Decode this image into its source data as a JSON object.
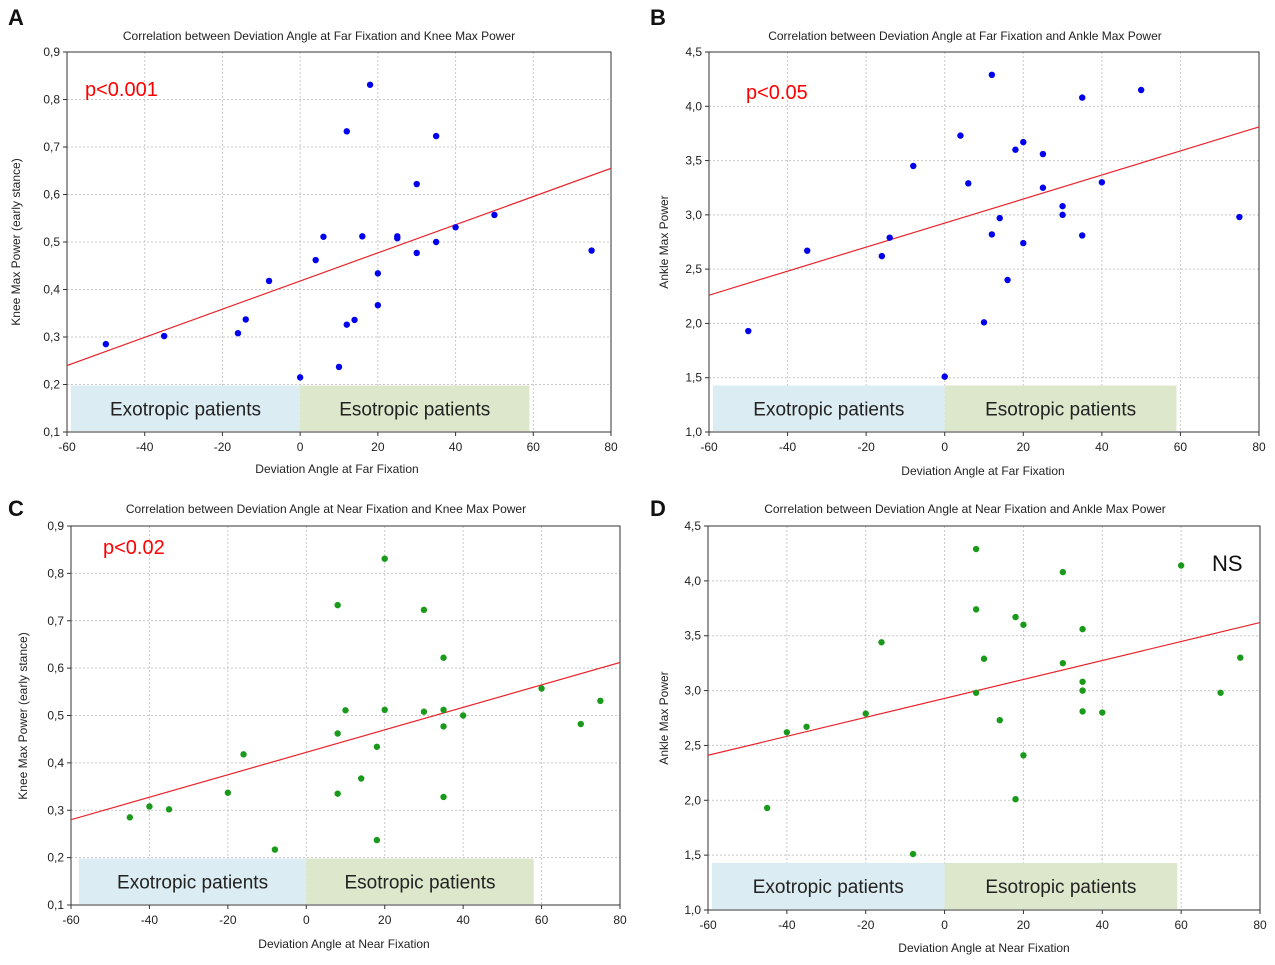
{
  "chart_data": [
    {
      "panel": "A",
      "type": "scatter",
      "title": "Correlation between Deviation Angle at Far Fixation and Knee Max Power",
      "xlabel": "Deviation Angle at Far Fixation",
      "ylabel": "Knee Max Power (early stance)",
      "xlim": [
        -60,
        80
      ],
      "ylim": [
        0.1,
        0.9
      ],
      "xticks": [
        -60,
        -40,
        -20,
        0,
        20,
        40,
        60,
        80
      ],
      "yticks": [
        0.1,
        0.2,
        0.3,
        0.4,
        0.5,
        0.6,
        0.7,
        0.8,
        0.9
      ],
      "xtick_labels": [
        "-60",
        "-40",
        "-20",
        "0",
        "20",
        "40",
        "60",
        "80"
      ],
      "ytick_labels": [
        "0,1",
        "0,2",
        "0,3",
        "0,4",
        "0,5",
        "0,6",
        "0,7",
        "0,8",
        "0,9"
      ],
      "grid": true,
      "point_color": "#0000ee",
      "line_color": "#e8232a",
      "fit_line": {
        "x": [
          -60,
          80
        ],
        "y": [
          0.24,
          0.655
        ]
      },
      "annotation": {
        "text": "p<0.001",
        "color": "#ff0000"
      },
      "regions": [
        {
          "label": "Exotropic patients",
          "x0": -59,
          "x1": 0,
          "color": "#dcecf3"
        },
        {
          "label": "Esotropic patients",
          "x0": 0,
          "x1": 59,
          "color": "#dde7cc"
        }
      ],
      "points": [
        {
          "x": -50,
          "y": 0.285
        },
        {
          "x": -35,
          "y": 0.302
        },
        {
          "x": -16,
          "y": 0.308
        },
        {
          "x": -14,
          "y": 0.337
        },
        {
          "x": -8,
          "y": 0.418
        },
        {
          "x": 0,
          "y": 0.215
        },
        {
          "x": 4,
          "y": 0.462
        },
        {
          "x": 6,
          "y": 0.511
        },
        {
          "x": 10,
          "y": 0.237
        },
        {
          "x": 12,
          "y": 0.326
        },
        {
          "x": 14,
          "y": 0.336
        },
        {
          "x": 12,
          "y": 0.733
        },
        {
          "x": 16,
          "y": 0.512
        },
        {
          "x": 18,
          "y": 0.831
        },
        {
          "x": 20,
          "y": 0.434
        },
        {
          "x": 20,
          "y": 0.367
        },
        {
          "x": 25,
          "y": 0.508
        },
        {
          "x": 25,
          "y": 0.512
        },
        {
          "x": 30,
          "y": 0.622
        },
        {
          "x": 30,
          "y": 0.477
        },
        {
          "x": 35,
          "y": 0.723
        },
        {
          "x": 35,
          "y": 0.5
        },
        {
          "x": 40,
          "y": 0.531
        },
        {
          "x": 50,
          "y": 0.557
        },
        {
          "x": 75,
          "y": 0.482
        }
      ]
    },
    {
      "panel": "B",
      "type": "scatter",
      "title": "Correlation between Deviation Angle at Far Fixation and Ankle Max Power",
      "xlabel": "Deviation Angle at Far Fixation",
      "ylabel": "Ankle Max Power",
      "xlim": [
        -60,
        80
      ],
      "ylim": [
        1.0,
        4.5
      ],
      "xticks": [
        -60,
        -40,
        -20,
        0,
        20,
        40,
        60,
        80
      ],
      "yticks": [
        1.0,
        1.5,
        2.0,
        2.5,
        3.0,
        3.5,
        4.0,
        4.5
      ],
      "xtick_labels": [
        "-60",
        "-40",
        "-20",
        "0",
        "20",
        "40",
        "60",
        "80"
      ],
      "ytick_labels": [
        "1,0",
        "1,5",
        "2,0",
        "2,5",
        "3,0",
        "3,5",
        "4,0",
        "4,5"
      ],
      "grid": true,
      "point_color": "#0000ee",
      "line_color": "#e8232a",
      "fit_line": {
        "x": [
          -60,
          80
        ],
        "y": [
          2.26,
          3.81
        ]
      },
      "annotation": {
        "text": "p<0.05",
        "color": "#ff0000"
      },
      "regions": [
        {
          "label": "Exotropic patients",
          "x0": -59,
          "x1": 0,
          "color": "#dcecf3"
        },
        {
          "label": "Esotropic patients",
          "x0": 0,
          "x1": 59,
          "color": "#dde7cc"
        }
      ],
      "points": [
        {
          "x": -50,
          "y": 1.93
        },
        {
          "x": -35,
          "y": 2.67
        },
        {
          "x": -16,
          "y": 2.62
        },
        {
          "x": -14,
          "y": 2.79
        },
        {
          "x": -8,
          "y": 3.45
        },
        {
          "x": 0,
          "y": 1.51
        },
        {
          "x": 4,
          "y": 3.73
        },
        {
          "x": 6,
          "y": 3.29
        },
        {
          "x": 10,
          "y": 2.01
        },
        {
          "x": 12,
          "y": 4.29
        },
        {
          "x": 12,
          "y": 2.82
        },
        {
          "x": 14,
          "y": 2.97
        },
        {
          "x": 16,
          "y": 2.4
        },
        {
          "x": 18,
          "y": 3.6
        },
        {
          "x": 20,
          "y": 3.67
        },
        {
          "x": 20,
          "y": 2.74
        },
        {
          "x": 25,
          "y": 3.56
        },
        {
          "x": 25,
          "y": 3.25
        },
        {
          "x": 30,
          "y": 3.08
        },
        {
          "x": 30,
          "y": 3.0
        },
        {
          "x": 35,
          "y": 4.08
        },
        {
          "x": 35,
          "y": 2.81
        },
        {
          "x": 40,
          "y": 3.3
        },
        {
          "x": 50,
          "y": 4.15
        },
        {
          "x": 75,
          "y": 2.98
        }
      ]
    },
    {
      "panel": "C",
      "type": "scatter",
      "title": "Correlation between Deviation Angle at Near Fixation and Knee Max Power",
      "xlabel": "Deviation Angle at Near Fixation",
      "ylabel": "Knee Max Power (early stance)",
      "xlim": [
        -60,
        80
      ],
      "ylim": [
        0.1,
        0.9
      ],
      "xticks": [
        -60,
        -40,
        -20,
        0,
        20,
        40,
        60,
        80
      ],
      "yticks": [
        0.1,
        0.2,
        0.3,
        0.4,
        0.5,
        0.6,
        0.7,
        0.8,
        0.9
      ],
      "xtick_labels": [
        "-60",
        "-40",
        "-20",
        "0",
        "20",
        "40",
        "60",
        "80"
      ],
      "ytick_labels": [
        "0,1",
        "0,2",
        "0,3",
        "0,4",
        "0,5",
        "0,6",
        "0,7",
        "0,8",
        "0,9"
      ],
      "grid": true,
      "point_color": "#1a9a1a",
      "line_color": "#e8232a",
      "fit_line": {
        "x": [
          -60,
          80
        ],
        "y": [
          0.28,
          0.612
        ]
      },
      "annotation": {
        "text": "p<0.02",
        "color": "#ff0000"
      },
      "regions": [
        {
          "label": "Exotropic patients",
          "x0": -58,
          "x1": 0,
          "color": "#dcecf3"
        },
        {
          "label": "Esotropic patients",
          "x0": 0,
          "x1": 58,
          "color": "#dde7cc"
        }
      ],
      "points": [
        {
          "x": -45,
          "y": 0.285
        },
        {
          "x": -40,
          "y": 0.308
        },
        {
          "x": -35,
          "y": 0.302
        },
        {
          "x": -20,
          "y": 0.337
        },
        {
          "x": -16,
          "y": 0.418
        },
        {
          "x": -8,
          "y": 0.217
        },
        {
          "x": 8,
          "y": 0.733
        },
        {
          "x": 8,
          "y": 0.462
        },
        {
          "x": 8,
          "y": 0.335
        },
        {
          "x": 10,
          "y": 0.511
        },
        {
          "x": 14,
          "y": 0.367
        },
        {
          "x": 18,
          "y": 0.434
        },
        {
          "x": 18,
          "y": 0.237
        },
        {
          "x": 20,
          "y": 0.831
        },
        {
          "x": 20,
          "y": 0.512
        },
        {
          "x": 30,
          "y": 0.723
        },
        {
          "x": 30,
          "y": 0.508
        },
        {
          "x": 35,
          "y": 0.622
        },
        {
          "x": 35,
          "y": 0.512
        },
        {
          "x": 35,
          "y": 0.477
        },
        {
          "x": 35,
          "y": 0.328
        },
        {
          "x": 40,
          "y": 0.5
        },
        {
          "x": 60,
          "y": 0.557
        },
        {
          "x": 70,
          "y": 0.482
        },
        {
          "x": 75,
          "y": 0.531
        }
      ]
    },
    {
      "panel": "D",
      "type": "scatter",
      "title": "Correlation between Deviation Angle at Near Fixation and Ankle Max Power",
      "xlabel": "Deviation Angle at Near Fixation",
      "ylabel": "Ankle Max Power",
      "xlim": [
        -60,
        80
      ],
      "ylim": [
        1.0,
        4.5
      ],
      "xticks": [
        -60,
        -40,
        -20,
        0,
        20,
        40,
        60,
        80
      ],
      "yticks": [
        1.0,
        1.5,
        2.0,
        2.5,
        3.0,
        3.5,
        4.0,
        4.5
      ],
      "xtick_labels": [
        "-60",
        "-40",
        "-20",
        "0",
        "20",
        "40",
        "60",
        "80"
      ],
      "ytick_labels": [
        "1,0",
        "1,5",
        "2,0",
        "2,5",
        "3,0",
        "3,5",
        "4,0",
        "4,5"
      ],
      "grid": true,
      "point_color": "#1a9a1a",
      "line_color": "#e8232a",
      "fit_line": {
        "x": [
          -60,
          80
        ],
        "y": [
          2.41,
          3.62
        ]
      },
      "annotation": {
        "text": "NS",
        "color": "#111111"
      },
      "regions": [
        {
          "label": "Exotropic patients",
          "x0": -59,
          "x1": 0,
          "color": "#dcecf3"
        },
        {
          "label": "Esotropic patients",
          "x0": 0,
          "x1": 59,
          "color": "#dde7cc"
        }
      ],
      "points": [
        {
          "x": -45,
          "y": 1.93
        },
        {
          "x": -40,
          "y": 2.62
        },
        {
          "x": -35,
          "y": 2.67
        },
        {
          "x": -20,
          "y": 2.79
        },
        {
          "x": -16,
          "y": 3.44
        },
        {
          "x": -8,
          "y": 1.51
        },
        {
          "x": 8,
          "y": 4.29
        },
        {
          "x": 8,
          "y": 3.74
        },
        {
          "x": 8,
          "y": 2.98
        },
        {
          "x": 10,
          "y": 3.29
        },
        {
          "x": 14,
          "y": 2.73
        },
        {
          "x": 18,
          "y": 3.67
        },
        {
          "x": 18,
          "y": 2.01
        },
        {
          "x": 20,
          "y": 3.6
        },
        {
          "x": 20,
          "y": 2.41
        },
        {
          "x": 30,
          "y": 4.08
        },
        {
          "x": 30,
          "y": 3.25
        },
        {
          "x": 35,
          "y": 3.56
        },
        {
          "x": 35,
          "y": 3.08
        },
        {
          "x": 35,
          "y": 3.0
        },
        {
          "x": 35,
          "y": 2.81
        },
        {
          "x": 40,
          "y": 2.8
        },
        {
          "x": 60,
          "y": 4.14
        },
        {
          "x": 70,
          "y": 2.98
        },
        {
          "x": 75,
          "y": 3.3
        }
      ]
    }
  ]
}
